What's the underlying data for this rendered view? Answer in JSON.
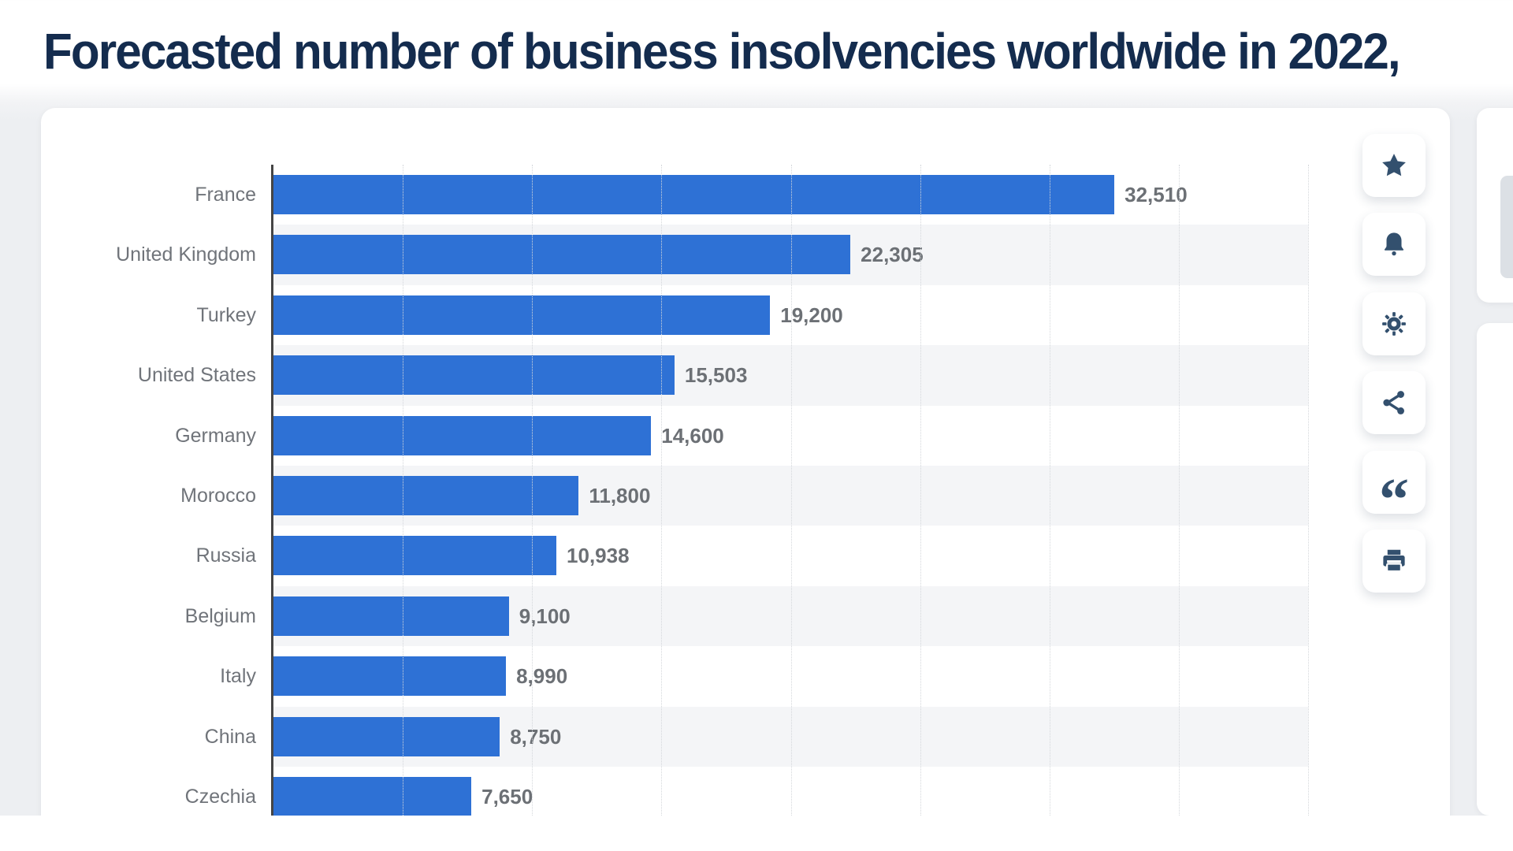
{
  "page": {
    "title": "Forecasted number of business insolvencies worldwide in 2022,",
    "title_color": "#142c4e",
    "background_color": "#edeff2"
  },
  "chart_data": {
    "type": "bar",
    "orientation": "horizontal",
    "title": "Forecasted number of business insolvencies worldwide in 2022,",
    "categories": [
      "France",
      "United Kingdom",
      "Turkey",
      "United States",
      "Germany",
      "Morocco",
      "Russia",
      "Belgium",
      "Italy",
      "China",
      "Czechia"
    ],
    "values": [
      32510,
      22305,
      19200,
      15503,
      14600,
      11800,
      10938,
      9100,
      8990,
      8750,
      7650
    ],
    "display_values": [
      "32,510",
      "22,305",
      "19,200",
      "15,503",
      "14,600",
      "11,800",
      "10,938",
      "9,100",
      "8,990",
      "8,750",
      "7,650"
    ],
    "xlabel": "",
    "ylabel": "",
    "xlim": [
      0,
      40000
    ],
    "gridline_step": 5000,
    "grid": "dotted-vertical",
    "legend": "none",
    "bar_color": "#2e71d5",
    "zebra_stripe_color": "#f4f5f7",
    "axis_color": "#454545"
  },
  "toolbar": {
    "icon_color": "#33506e",
    "buttons": [
      {
        "name": "favorite",
        "icon": "star-icon"
      },
      {
        "name": "notifications",
        "icon": "bell-icon"
      },
      {
        "name": "settings",
        "icon": "gear-icon"
      },
      {
        "name": "share",
        "icon": "share-icon"
      },
      {
        "name": "cite",
        "icon": "quote-icon"
      },
      {
        "name": "print",
        "icon": "printer-icon"
      }
    ]
  }
}
